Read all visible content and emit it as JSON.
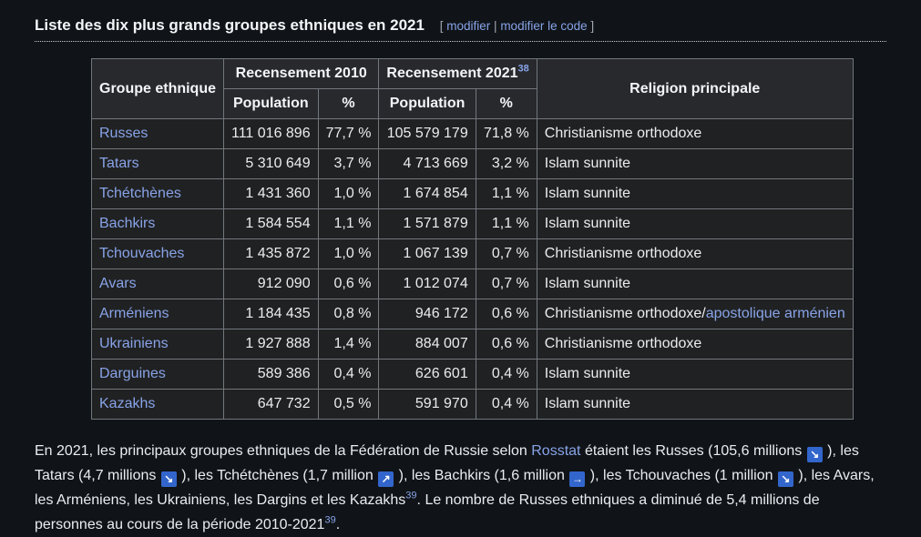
{
  "heading": {
    "title": "Liste des dix plus grands groupes ethniques en 2021",
    "bracket_open": "[",
    "edit_label": "modifier",
    "separator": "|",
    "edit_code_label": "modifier le code",
    "bracket_close": "]"
  },
  "table": {
    "headers": {
      "group": "Groupe ethnique",
      "census2010": "Recensement 2010",
      "census2021": "Recensement 2021",
      "census2021_ref": "38",
      "religion": "Religion principale"
    },
    "sub_headers": [
      "Population",
      "%",
      "Population",
      "%"
    ],
    "rows": [
      {
        "group": "Russes",
        "pop2010": "111 016 896",
        "pct2010": "77,7 %",
        "pop2021": "105 579 179",
        "pct2021": "71,8 %",
        "religion": "Christianisme orthodoxe",
        "religion_link": ""
      },
      {
        "group": "Tatars",
        "pop2010": "5 310 649",
        "pct2010": "3,7 %",
        "pop2021": "4 713 669",
        "pct2021": "3,2 %",
        "religion": "Islam sunnite",
        "religion_link": ""
      },
      {
        "group": "Tchétchènes",
        "pop2010": "1 431 360",
        "pct2010": "1,0 %",
        "pop2021": "1 674 854",
        "pct2021": "1,1 %",
        "religion": "Islam sunnite",
        "religion_link": ""
      },
      {
        "group": "Bachkirs",
        "pop2010": "1 584 554",
        "pct2010": "1,1 %",
        "pop2021": "1 571 879",
        "pct2021": "1,1 %",
        "religion": "Islam sunnite",
        "religion_link": ""
      },
      {
        "group": "Tchouvaches",
        "pop2010": "1 435 872",
        "pct2010": "1,0 %",
        "pop2021": "1 067 139",
        "pct2021": "0,7 %",
        "religion": "Christianisme orthodoxe",
        "religion_link": ""
      },
      {
        "group": "Avars",
        "pop2010": "912 090",
        "pct2010": "0,6 %",
        "pop2021": "1 012 074",
        "pct2021": "0,7 %",
        "religion": "Islam sunnite",
        "religion_link": ""
      },
      {
        "group": "Arméniens",
        "pop2010": "1 184 435",
        "pct2010": "0,8 %",
        "pop2021": "946 172",
        "pct2021": "0,6 %",
        "religion": "Christianisme orthodoxe/",
        "religion_link": "apostolique arménien"
      },
      {
        "group": "Ukrainiens",
        "pop2010": "1 927 888",
        "pct2010": "1,4 %",
        "pop2021": "884 007",
        "pct2021": "0,6 %",
        "religion": "Christianisme orthodoxe",
        "religion_link": ""
      },
      {
        "group": "Darguines",
        "pop2010": "589 386",
        "pct2010": "0,4 %",
        "pop2021": "626 601",
        "pct2021": "0,4 %",
        "religion": "Islam sunnite",
        "religion_link": ""
      },
      {
        "group": "Kazakhs",
        "pop2010": "647 732",
        "pct2010": "0,5 %",
        "pop2021": "591 970",
        "pct2021": "0,4 %",
        "religion": "Islam sunnite",
        "religion_link": ""
      }
    ]
  },
  "paragraph": {
    "segments": [
      {
        "t": "text",
        "v": "En 2021, les principaux groupes ethniques de la Fédération de Russie selon "
      },
      {
        "t": "link",
        "v": "Rosstat",
        "name": "rosstat-link"
      },
      {
        "t": "text",
        "v": " étaient les Russes (105,6 millions "
      },
      {
        "t": "icon",
        "v": "decrease"
      },
      {
        "t": "text",
        "v": " ), les Tatars (4,7 millions "
      },
      {
        "t": "icon",
        "v": "decrease"
      },
      {
        "t": "text",
        "v": " ), les Tchétchènes (1,7 million "
      },
      {
        "t": "icon",
        "v": "increase"
      },
      {
        "t": "text",
        "v": " ), les Bachkirs (1,6 million "
      },
      {
        "t": "icon",
        "v": "steady"
      },
      {
        "t": "text",
        "v": " ), les Tchouvaches (1 million "
      },
      {
        "t": "icon",
        "v": "decrease"
      },
      {
        "t": "text",
        "v": " ), les Avars, les Arméniens, les Ukrainiens, les Dargins et les Kazakhs"
      },
      {
        "t": "sup",
        "v": "39",
        "name": "ref-39-link"
      },
      {
        "t": "text",
        "v": ". Le nombre de Russes ethniques a diminué de 5,4 millions de personnes au cours de la période 2010-2021"
      },
      {
        "t": "sup",
        "v": "39",
        "name": "ref-39-link"
      },
      {
        "t": "text",
        "v": "."
      }
    ]
  },
  "icons": {
    "decrease": "↘",
    "increase": "↗",
    "steady": "→"
  },
  "colors": {
    "link": "#88a3e8",
    "icon_bg": "#3366cc",
    "icon_arrow": "#ffffff",
    "cell_bg": "#202122",
    "header_bg": "#27292d",
    "border": "#72777d",
    "page_bg": "#101418"
  }
}
